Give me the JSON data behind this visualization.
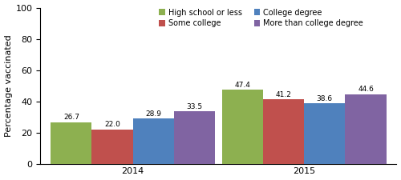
{
  "years": [
    "2014",
    "2015"
  ],
  "categories": [
    "High school or less",
    "Some college",
    "College degree",
    "More than college degree"
  ],
  "values": {
    "2014": [
      26.7,
      22.0,
      28.9,
      33.5
    ],
    "2015": [
      47.4,
      41.2,
      38.6,
      44.6
    ]
  },
  "bar_colors": [
    "#8db050",
    "#c0504d",
    "#4f81bd",
    "#8064a2"
  ],
  "ylabel": "Percentage vaccinated",
  "ylim": [
    0,
    100
  ],
  "yticks": [
    0,
    20,
    40,
    60,
    80,
    100
  ],
  "bar_width": 0.12,
  "label_fontsize": 6.5,
  "legend_fontsize": 7.0,
  "tick_fontsize": 8,
  "ylabel_fontsize": 8,
  "legend_order": [
    "High school or less",
    "Some college",
    "College degree",
    "More than college degree"
  ]
}
